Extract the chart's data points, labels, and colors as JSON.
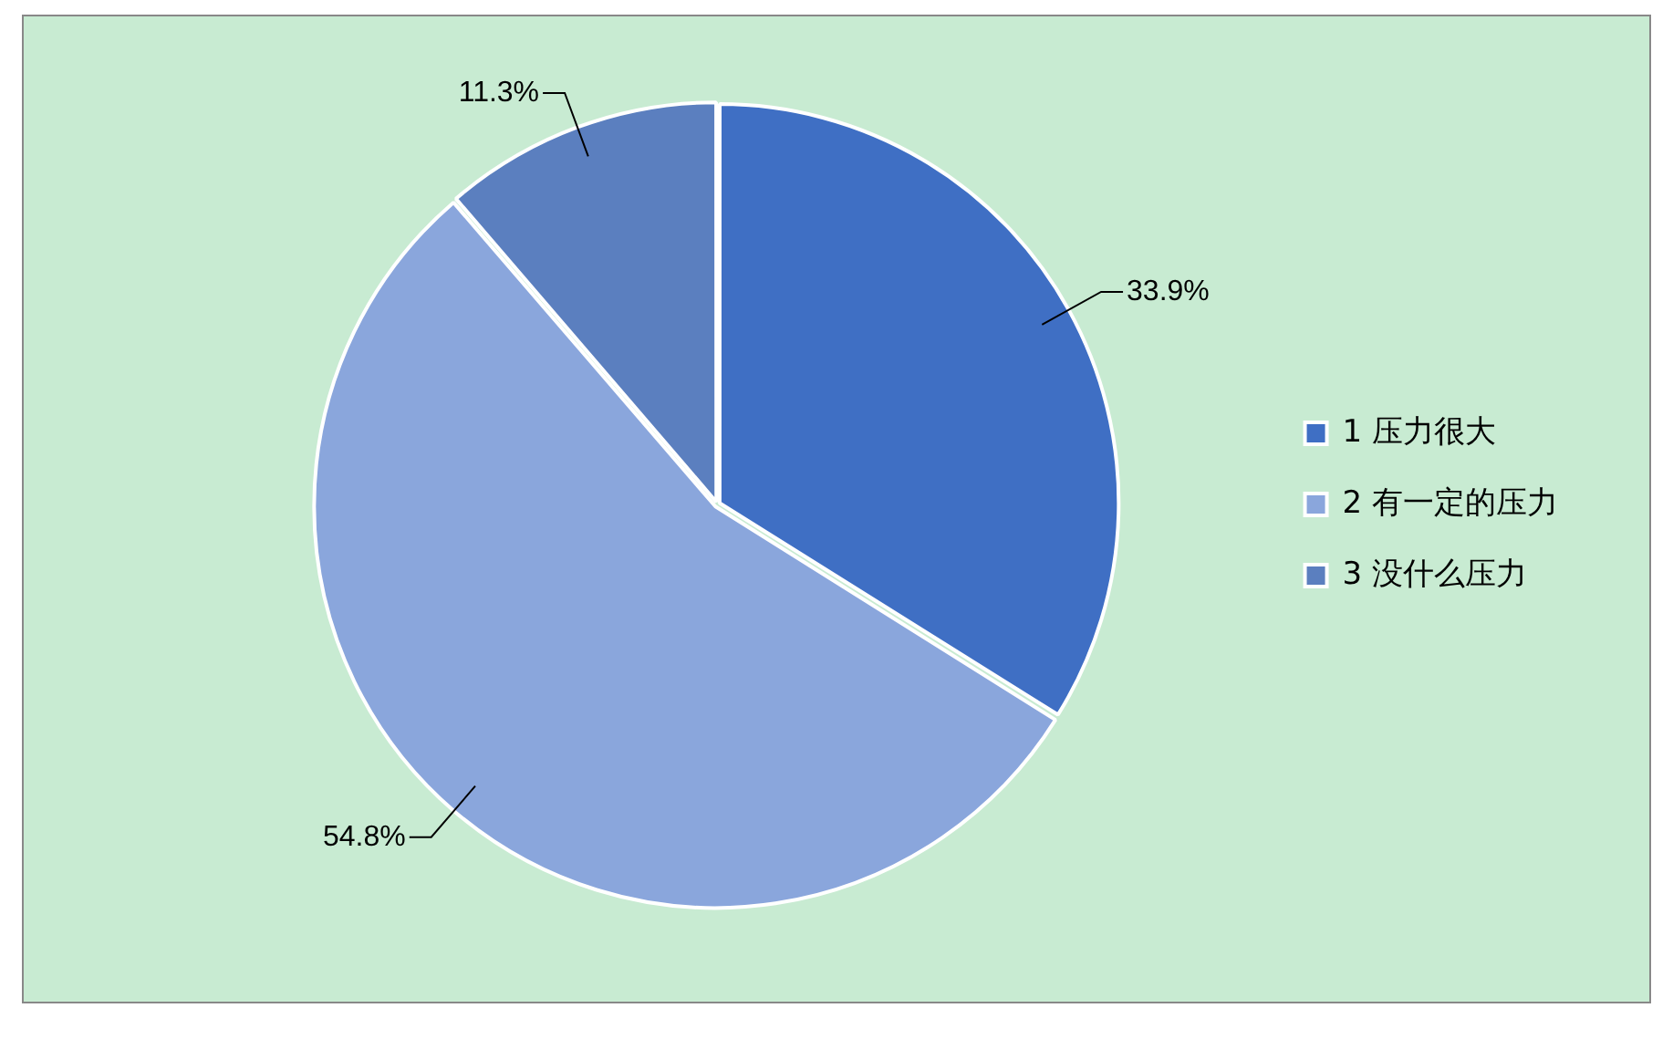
{
  "chart_data": {
    "type": "pie",
    "categories": [
      "1 压力很大",
      "2 有一定的压力",
      "3 没什么压力"
    ],
    "values": [
      33.9,
      54.8,
      11.3
    ],
    "colors": [
      "#3f6fc4",
      "#8aa6dc",
      "#5b7fbf"
    ],
    "value_labels": [
      "33.9%",
      "54.8%",
      "11.3%"
    ],
    "legend": "right"
  }
}
